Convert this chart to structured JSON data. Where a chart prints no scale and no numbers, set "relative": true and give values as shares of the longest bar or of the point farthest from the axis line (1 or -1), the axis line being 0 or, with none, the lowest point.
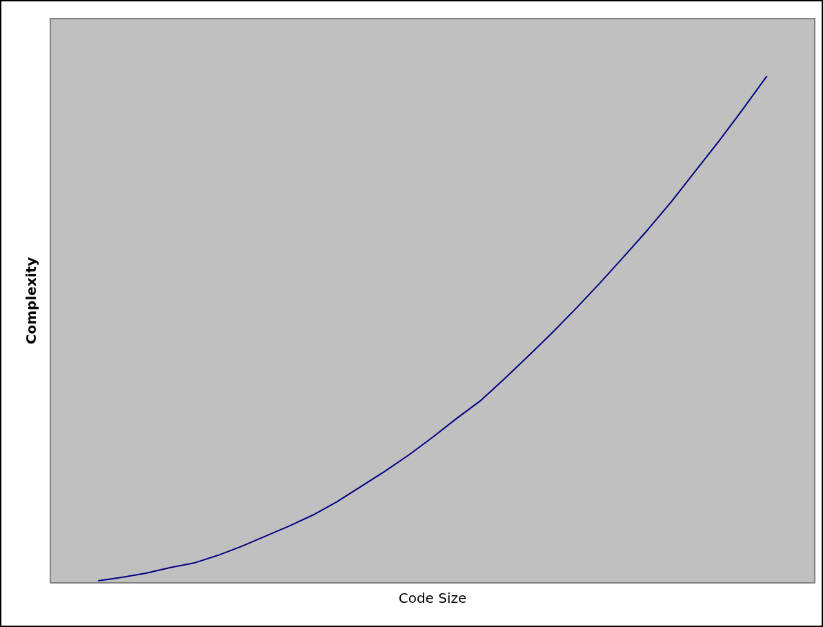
{
  "chart_data": {
    "type": "line",
    "xlabel": "Code Size",
    "ylabel": "Complexity",
    "relative": true,
    "categories": [
      null,
      null,
      null,
      null,
      null,
      null,
      null,
      null,
      null,
      null,
      null,
      null,
      null,
      null,
      null,
      null,
      null,
      null,
      null,
      null,
      null,
      null,
      null,
      null,
      null,
      null,
      null,
      null,
      null
    ],
    "series": [
      {
        "color": "#000080",
        "values": [
          0.004,
          0.011,
          0.019,
          0.03,
          0.039,
          0.054,
          0.072,
          0.092,
          0.112,
          0.134,
          0.16,
          0.19,
          0.22,
          0.252,
          0.287,
          0.324,
          0.359,
          0.402,
          0.447,
          0.493,
          0.541,
          0.591,
          0.643,
          0.696,
          0.752,
          0.812,
          0.872,
          0.935,
          1
        ]
      }
    ]
  }
}
